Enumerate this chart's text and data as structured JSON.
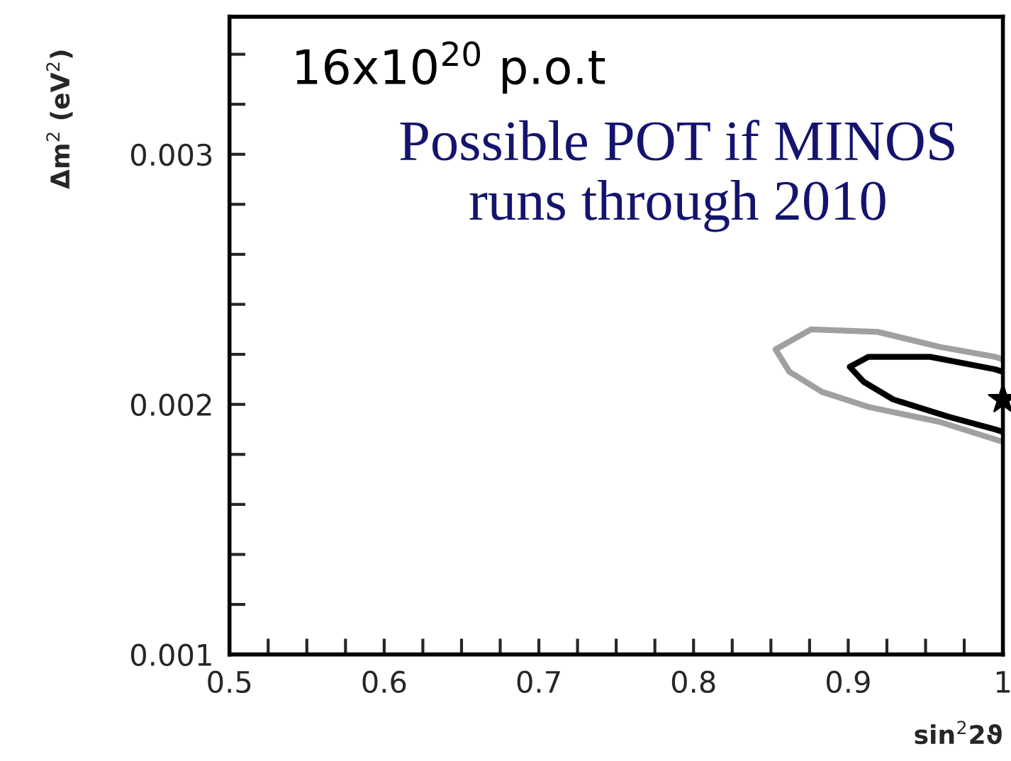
{
  "chart_data": {
    "type": "line",
    "xlabel": "sin$^{2}$2ϑ",
    "ylabel": "Δm$^{2}$ (eV$^{2}$)",
    "annotations": [
      "16x10$^{20}$ p.o.t",
      "Possible POT if MINOS runs through 2010"
    ],
    "series": [
      {
        "color": "#a0a0a0",
        "x": [
          1.0,
          0.995,
          0.959,
          0.919,
          0.876,
          0.853,
          0.862,
          0.883,
          0.913,
          0.959,
          0.995,
          1.0
        ],
        "values": [
          0.00218,
          0.00219,
          0.00223,
          0.00229,
          0.0023,
          0.00222,
          0.00213,
          0.00205,
          0.00199,
          0.00193,
          0.00186,
          0.00185
        ]
      },
      {
        "color": "#000000",
        "x": [
          1.0,
          0.995,
          0.953,
          0.913,
          0.901,
          0.91,
          0.929,
          0.965,
          0.995,
          1.0
        ],
        "values": [
          0.00213,
          0.00214,
          0.00219,
          0.00219,
          0.00215,
          0.00209,
          0.00202,
          0.00195,
          0.0019,
          0.00189
        ]
      },
      {
        "type": "scatter",
        "marker": "star",
        "color": "#000000",
        "x": [
          1.0
        ],
        "values": [
          0.00202
        ]
      }
    ],
    "xlim": [
      0.5,
      1.0
    ],
    "ylim": [
      0.001,
      0.00355
    ],
    "xticks": [
      0.5,
      {
        "value": 0.525,
        "label": null
      },
      {
        "value": 0.55,
        "label": null
      },
      {
        "value": 0.575,
        "label": null
      },
      0.6,
      {
        "value": 0.625,
        "label": null
      },
      {
        "value": 0.65,
        "label": null
      },
      {
        "value": 0.675,
        "label": null
      },
      0.7,
      {
        "value": 0.725,
        "label": null
      },
      {
        "value": 0.75,
        "label": null
      },
      {
        "value": 0.775,
        "label": null
      },
      0.8,
      {
        "value": 0.825,
        "label": null
      },
      {
        "value": 0.85,
        "label": null
      },
      {
        "value": 0.875,
        "label": null
      },
      0.9,
      {
        "value": 0.925,
        "label": null
      },
      {
        "value": 0.95,
        "label": null
      },
      {
        "value": 0.975,
        "label": null
      },
      {
        "value": 1.0,
        "label": "1"
      }
    ],
    "yticks": [
      0.001,
      {
        "value": 0.0012,
        "label": null
      },
      {
        "value": 0.0014,
        "label": null
      },
      {
        "value": 0.0016,
        "label": null
      },
      {
        "value": 0.0018,
        "label": null
      },
      0.002,
      {
        "value": 0.0022,
        "label": null
      },
      {
        "value": 0.0024,
        "label": null
      },
      {
        "value": 0.0026,
        "label": null
      },
      {
        "value": 0.0028,
        "label": null
      },
      0.003,
      {
        "value": 0.0032,
        "label": null
      },
      {
        "value": 0.0034,
        "label": null
      }
    ],
    "grid": false,
    "legend": false,
    "line_style": "solid"
  }
}
